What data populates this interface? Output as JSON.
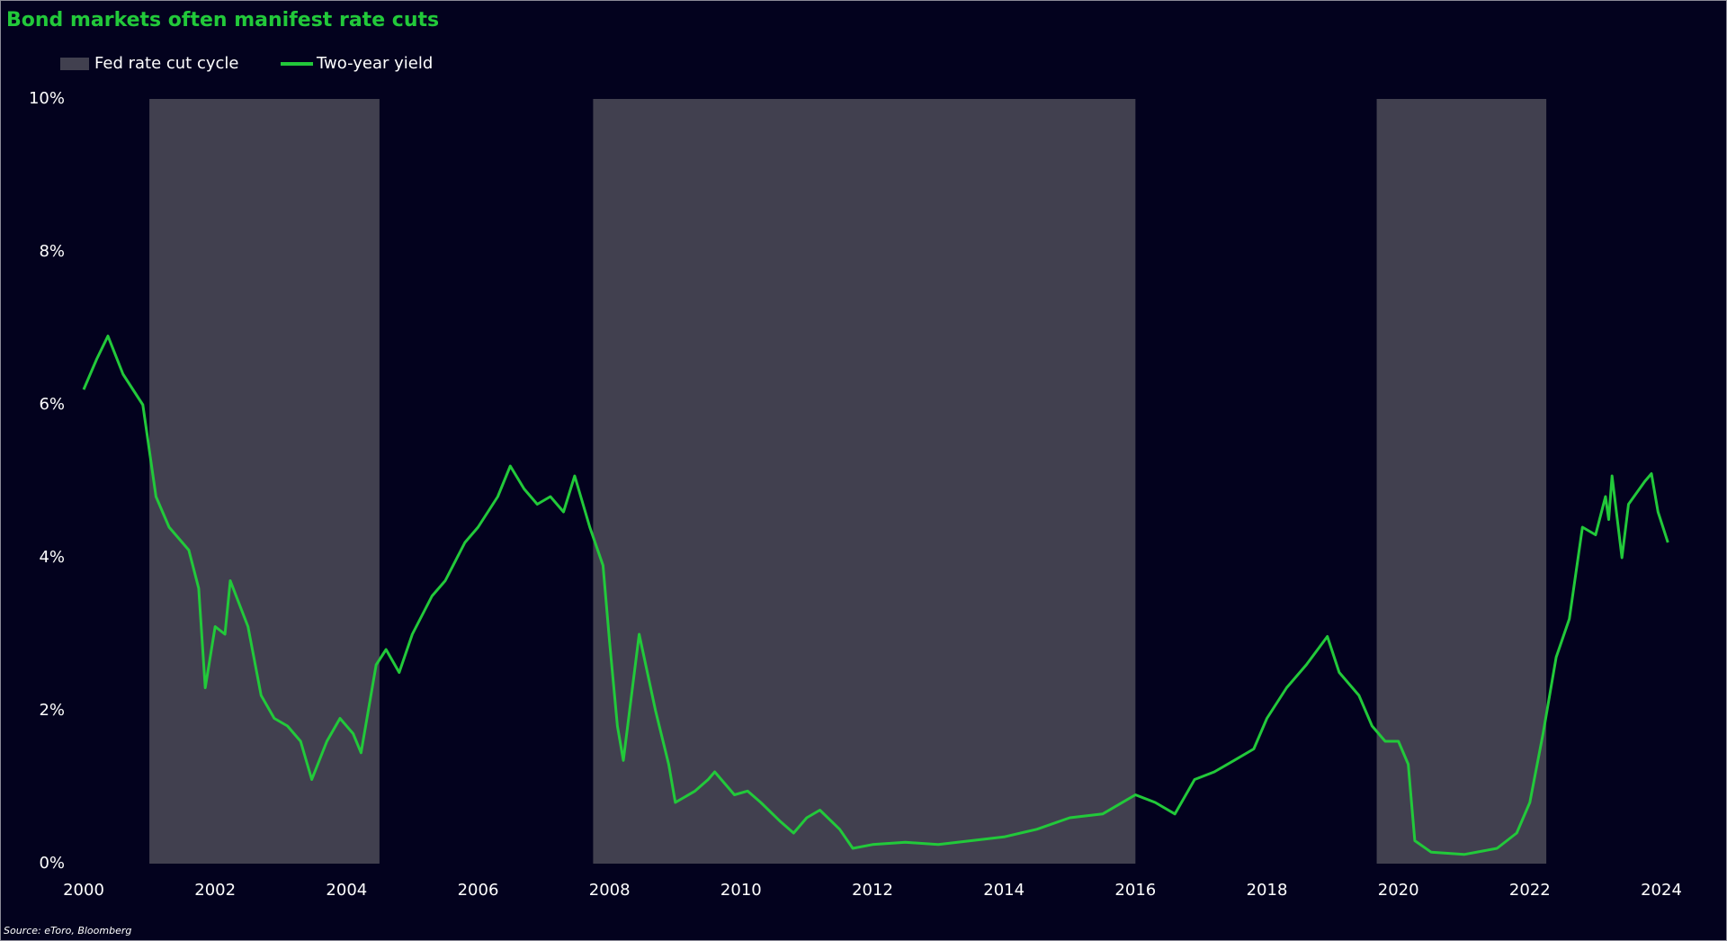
{
  "chart_data": {
    "type": "line",
    "title": "Bond markets often manifest rate cuts",
    "source": "Source: eToro, Bloomberg",
    "x": [
      2000.0,
      2000.2,
      2000.37,
      2000.6,
      2000.9,
      2001.1,
      2001.3,
      2001.6,
      2001.75,
      2001.85,
      2002.0,
      2002.15,
      2002.23,
      2002.5,
      2002.7,
      2002.9,
      2003.1,
      2003.3,
      2003.47,
      2003.7,
      2003.9,
      2004.1,
      2004.22,
      2004.45,
      2004.6,
      2004.8,
      2005.0,
      2005.3,
      2005.5,
      2005.8,
      2006.0,
      2006.3,
      2006.49,
      2006.7,
      2006.9,
      2007.1,
      2007.3,
      2007.47,
      2007.7,
      2007.9,
      2008.0,
      2008.12,
      2008.21,
      2008.45,
      2008.7,
      2008.9,
      2009.0,
      2009.3,
      2009.5,
      2009.6,
      2009.9,
      2010.1,
      2010.3,
      2010.6,
      2010.8,
      2011.0,
      2011.2,
      2011.5,
      2011.7,
      2012.0,
      2012.5,
      2013.0,
      2013.5,
      2014.0,
      2014.5,
      2015.0,
      2015.5,
      2016.0,
      2016.3,
      2016.6,
      2016.9,
      2017.2,
      2017.5,
      2017.8,
      2018.0,
      2018.3,
      2018.6,
      2018.92,
      2019.1,
      2019.4,
      2019.6,
      2019.8,
      2020.0,
      2020.15,
      2020.25,
      2020.5,
      2021.0,
      2021.5,
      2021.8,
      2022.0,
      2022.2,
      2022.4,
      2022.6,
      2022.8,
      2023.0,
      2023.15,
      2023.2,
      2023.25,
      2023.4,
      2023.5,
      2023.75,
      2023.85,
      2023.95,
      2024.1
    ],
    "series": [
      {
        "name": "Two-year yield",
        "color": "#22c93a",
        "values": [
          6.2,
          6.6,
          6.9,
          6.4,
          6.0,
          4.8,
          4.4,
          4.1,
          3.6,
          2.3,
          3.1,
          3.0,
          3.7,
          3.1,
          2.2,
          1.9,
          1.8,
          1.6,
          1.1,
          1.6,
          1.9,
          1.7,
          1.45,
          2.6,
          2.8,
          2.5,
          3.0,
          3.5,
          3.7,
          4.2,
          4.4,
          4.8,
          5.2,
          4.9,
          4.7,
          4.8,
          4.6,
          5.07,
          4.4,
          3.9,
          2.9,
          1.8,
          1.35,
          3.0,
          2.0,
          1.3,
          0.8,
          0.95,
          1.1,
          1.2,
          0.9,
          0.95,
          0.8,
          0.55,
          0.4,
          0.6,
          0.7,
          0.45,
          0.2,
          0.25,
          0.28,
          0.25,
          0.3,
          0.35,
          0.45,
          0.6,
          0.65,
          0.9,
          0.8,
          0.65,
          1.1,
          1.2,
          1.35,
          1.5,
          1.9,
          2.3,
          2.6,
          2.97,
          2.5,
          2.2,
          1.8,
          1.6,
          1.6,
          1.3,
          0.3,
          0.15,
          0.12,
          0.2,
          0.4,
          0.8,
          1.7,
          2.7,
          3.2,
          4.4,
          4.3,
          4.8,
          4.5,
          5.07,
          4.0,
          4.7,
          5.0,
          5.1,
          4.6,
          4.2
        ]
      }
    ],
    "shaded_regions": {
      "name": "Fed rate cut cycle",
      "color": "#41404f",
      "ranges": [
        [
          2001.0,
          2004.5
        ],
        [
          2007.75,
          2016.0
        ],
        [
          2019.67,
          2022.25
        ]
      ]
    },
    "xlim": [
      2000,
      2024
    ],
    "xticks": [
      2000,
      2002,
      2004,
      2006,
      2008,
      2010,
      2012,
      2014,
      2016,
      2018,
      2020,
      2022,
      2024
    ],
    "ylim": [
      0,
      10
    ],
    "yticks": [
      {
        "value": 0,
        "label": "0%"
      },
      {
        "value": 2,
        "label": "2%"
      },
      {
        "value": 4,
        "label": "4%"
      },
      {
        "value": 6,
        "label": "6%"
      },
      {
        "value": 8,
        "label": "8%"
      },
      {
        "value": 10,
        "label": "10%"
      }
    ],
    "grid": false
  }
}
